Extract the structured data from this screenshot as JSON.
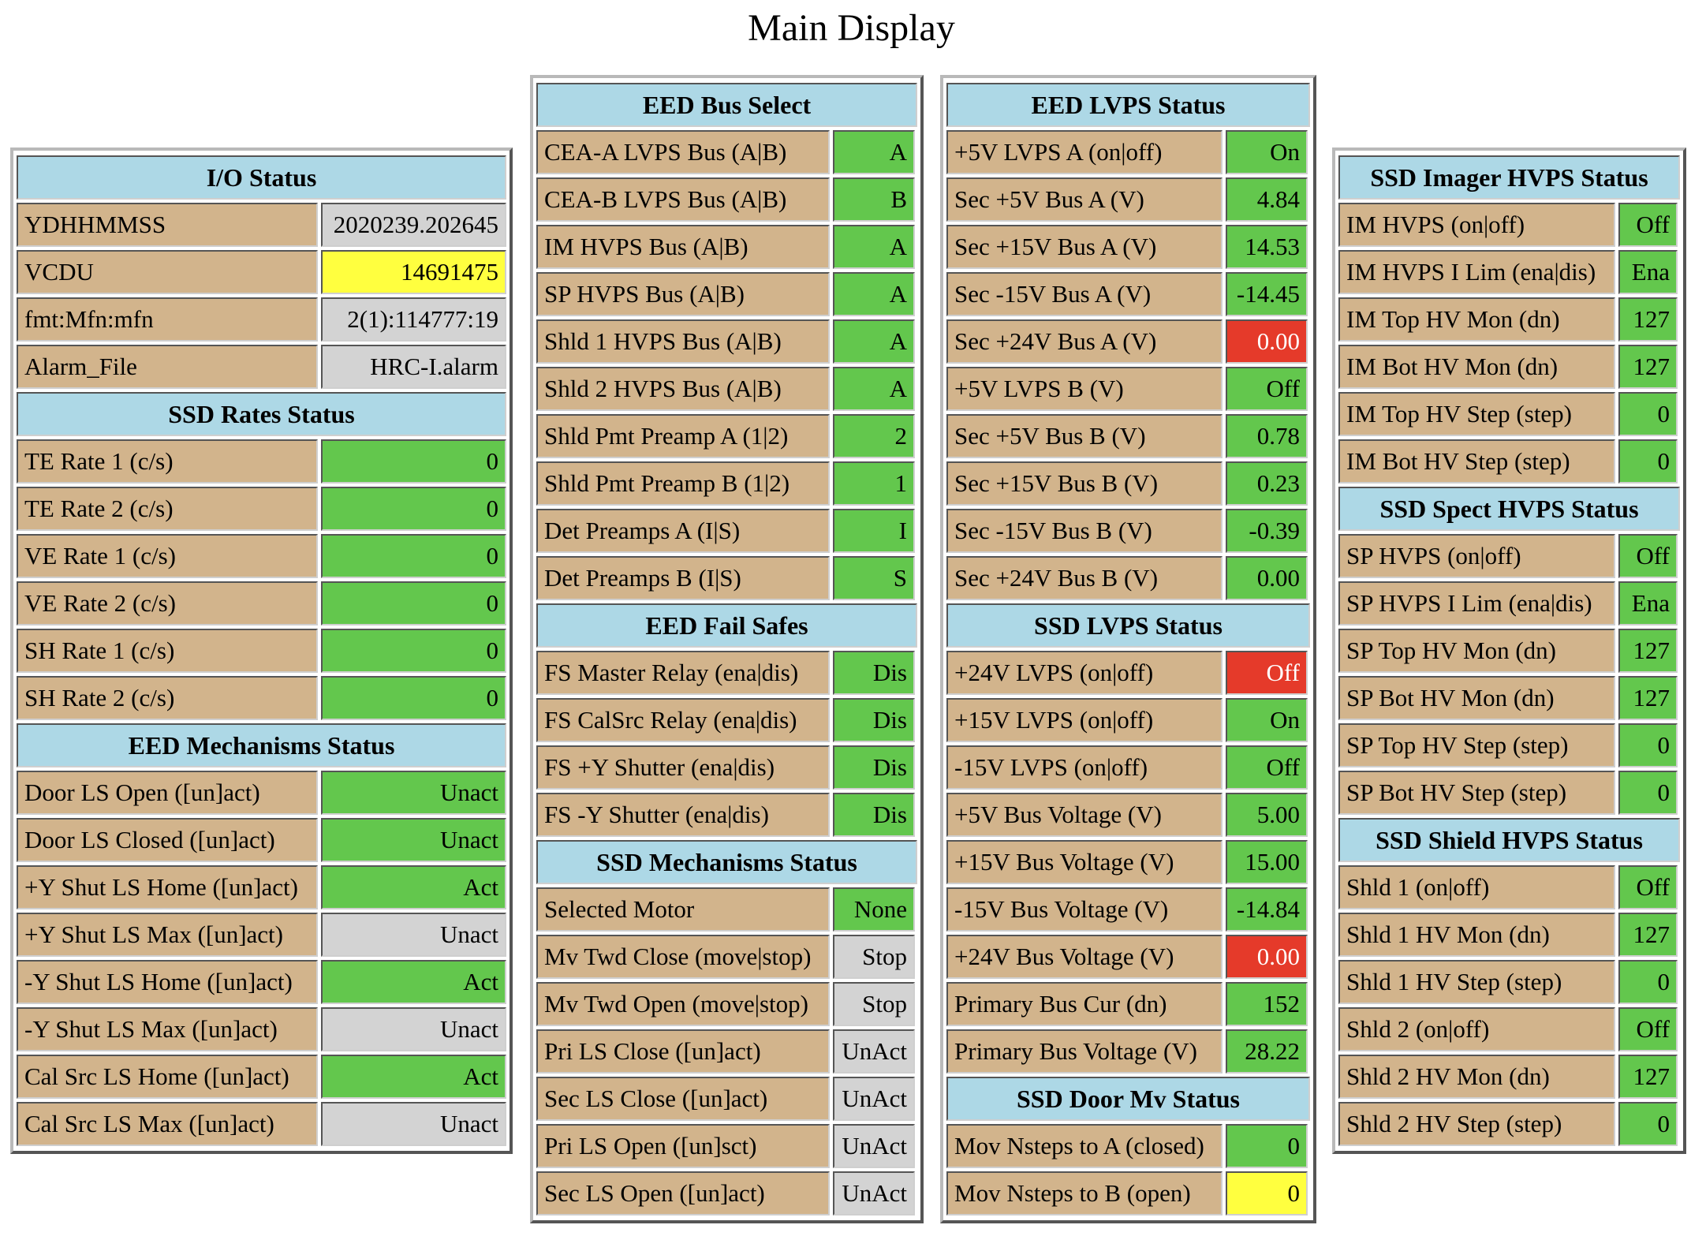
{
  "page": {
    "title": "Main Display"
  },
  "colors": {
    "ok": "#63c74d",
    "warn": "#ffff3f",
    "alarm": "#e53a2a",
    "neutral": "#d3d3d3",
    "label": "#d2b48c",
    "header": "#add8e6"
  },
  "panels": {
    "io": {
      "sections": [
        {
          "title": "I/O Status",
          "rows": [
            {
              "label": "YDHHMMSS",
              "value": "2020239.202645",
              "status": "neutral"
            },
            {
              "label": "VCDU",
              "value": "14691475",
              "status": "warn"
            },
            {
              "label": "fmt:Mfn:mfn",
              "value": "2(1):114777:19",
              "status": "neutral"
            },
            {
              "label": "Alarm_File",
              "value": "HRC-I.alarm",
              "status": "neutral"
            }
          ]
        },
        {
          "title": "SSD Rates Status",
          "rows": [
            {
              "label": "TE Rate 1 (c/s)",
              "value": "0",
              "status": "ok"
            },
            {
              "label": "TE Rate 2 (c/s)",
              "value": "0",
              "status": "ok"
            },
            {
              "label": "VE Rate 1 (c/s)",
              "value": "0",
              "status": "ok"
            },
            {
              "label": "VE Rate 2 (c/s)",
              "value": "0",
              "status": "ok"
            },
            {
              "label": "SH Rate 1 (c/s)",
              "value": "0",
              "status": "ok"
            },
            {
              "label": "SH Rate 2 (c/s)",
              "value": "0",
              "status": "ok"
            }
          ]
        },
        {
          "title": "EED Mechanisms Status",
          "rows": [
            {
              "label": "Door LS Open ([un]act)",
              "value": "Unact",
              "status": "ok"
            },
            {
              "label": "Door LS Closed ([un]act)",
              "value": "Unact",
              "status": "ok"
            },
            {
              "label": "+Y Shut LS Home ([un]act)",
              "value": "Act",
              "status": "ok"
            },
            {
              "label": "+Y Shut LS Max ([un]act)",
              "value": "Unact",
              "status": "neutral"
            },
            {
              "label": "-Y Shut LS Home ([un]act)",
              "value": "Act",
              "status": "ok"
            },
            {
              "label": "-Y Shut LS Max ([un]act)",
              "value": "Unact",
              "status": "neutral"
            },
            {
              "label": "Cal Src LS Home ([un]act)",
              "value": "Act",
              "status": "ok"
            },
            {
              "label": "Cal Src LS Max ([un]act)",
              "value": "Unact",
              "status": "neutral"
            }
          ]
        }
      ]
    },
    "bus": {
      "sections": [
        {
          "title": "EED Bus Select",
          "rows": [
            {
              "label": "CEA-A LVPS Bus (A|B)",
              "value": "A",
              "status": "ok"
            },
            {
              "label": "CEA-B LVPS Bus (A|B)",
              "value": "B",
              "status": "ok"
            },
            {
              "label": "IM HVPS Bus (A|B)",
              "value": "A",
              "status": "ok"
            },
            {
              "label": "SP HVPS Bus (A|B)",
              "value": "A",
              "status": "ok"
            },
            {
              "label": "Shld 1 HVPS Bus (A|B)",
              "value": "A",
              "status": "ok"
            },
            {
              "label": "Shld 2 HVPS Bus (A|B)",
              "value": "A",
              "status": "ok"
            },
            {
              "label": "Shld Pmt Preamp A (1|2)",
              "value": "2",
              "status": "ok"
            },
            {
              "label": "Shld Pmt Preamp B (1|2)",
              "value": "1",
              "status": "ok"
            },
            {
              "label": "Det Preamps A (I|S)",
              "value": "I",
              "status": "ok"
            },
            {
              "label": "Det Preamps B (I|S)",
              "value": "S",
              "status": "ok"
            }
          ]
        },
        {
          "title": "EED Fail Safes",
          "rows": [
            {
              "label": "FS Master Relay (ena|dis)",
              "value": "Dis",
              "status": "ok"
            },
            {
              "label": "FS CalSrc Relay (ena|dis)",
              "value": "Dis",
              "status": "ok"
            },
            {
              "label": "FS +Y Shutter (ena|dis)",
              "value": "Dis",
              "status": "ok"
            },
            {
              "label": "FS -Y Shutter (ena|dis)",
              "value": "Dis",
              "status": "ok"
            }
          ]
        },
        {
          "title": "SSD Mechanisms Status",
          "rows": [
            {
              "label": "Selected Motor",
              "value": "None",
              "status": "ok"
            },
            {
              "label": "Mv Twd Close (move|stop)",
              "value": "Stop",
              "status": "neutral"
            },
            {
              "label": "Mv Twd Open (move|stop)",
              "value": "Stop",
              "status": "neutral"
            },
            {
              "label": "Pri LS Close ([un]act)",
              "value": "UnAct",
              "status": "neutral"
            },
            {
              "label": "Sec LS Close ([un]act)",
              "value": "UnAct",
              "status": "neutral"
            },
            {
              "label": "Pri LS Open ([un]sct)",
              "value": "UnAct",
              "status": "neutral"
            },
            {
              "label": "Sec LS Open ([un]act)",
              "value": "UnAct",
              "status": "neutral"
            }
          ]
        }
      ]
    },
    "lvps": {
      "sections": [
        {
          "title": "EED LVPS Status",
          "rows": [
            {
              "label": "+5V LVPS A (on|off)",
              "value": "On",
              "status": "ok"
            },
            {
              "label": "Sec +5V Bus A (V)",
              "value": "4.84",
              "status": "ok"
            },
            {
              "label": "Sec +15V Bus A (V)",
              "value": "14.53",
              "status": "ok"
            },
            {
              "label": "Sec -15V Bus A (V)",
              "value": "-14.45",
              "status": "ok"
            },
            {
              "label": "Sec +24V Bus A (V)",
              "value": "0.00",
              "status": "alarm"
            },
            {
              "label": "+5V LVPS B (V)",
              "value": "Off",
              "status": "ok"
            },
            {
              "label": "Sec +5V Bus B (V)",
              "value": "0.78",
              "status": "ok"
            },
            {
              "label": "Sec +15V Bus B (V)",
              "value": "0.23",
              "status": "ok"
            },
            {
              "label": "Sec -15V Bus B (V)",
              "value": "-0.39",
              "status": "ok"
            },
            {
              "label": "Sec +24V Bus B (V)",
              "value": "0.00",
              "status": "ok"
            }
          ]
        },
        {
          "title": "SSD LVPS Status",
          "rows": [
            {
              "label": "+24V LVPS (on|off)",
              "value": "Off",
              "status": "alarm"
            },
            {
              "label": "+15V LVPS (on|off)",
              "value": "On",
              "status": "ok"
            },
            {
              "label": "-15V LVPS (on|off)",
              "value": "Off",
              "status": "ok"
            },
            {
              "label": "+5V Bus Voltage (V)",
              "value": "5.00",
              "status": "ok"
            },
            {
              "label": "+15V Bus Voltage (V)",
              "value": "15.00",
              "status": "ok"
            },
            {
              "label": "-15V Bus Voltage (V)",
              "value": "-14.84",
              "status": "ok"
            },
            {
              "label": "+24V Bus Voltage (V)",
              "value": "0.00",
              "status": "alarm"
            },
            {
              "label": "Primary Bus Cur (dn)",
              "value": "152",
              "status": "ok"
            },
            {
              "label": "Primary Bus Voltage (V)",
              "value": "28.22",
              "status": "ok"
            }
          ]
        },
        {
          "title": "SSD Door Mv Status",
          "rows": [
            {
              "label": "Mov Nsteps to A (closed)",
              "value": "0",
              "status": "ok"
            },
            {
              "label": "Mov Nsteps to B (open)",
              "value": "0",
              "status": "warn"
            }
          ]
        }
      ]
    },
    "hvps": {
      "sections": [
        {
          "title": "SSD Imager HVPS Status",
          "rows": [
            {
              "label": "IM HVPS (on|off)",
              "value": "Off",
              "status": "ok"
            },
            {
              "label": "IM HVPS I Lim (ena|dis)",
              "value": "Ena",
              "status": "ok"
            },
            {
              "label": "IM Top HV Mon (dn)",
              "value": "127",
              "status": "ok"
            },
            {
              "label": "IM Bot HV Mon (dn)",
              "value": "127",
              "status": "ok"
            },
            {
              "label": "IM Top HV Step (step)",
              "value": "0",
              "status": "ok"
            },
            {
              "label": "IM Bot HV Step (step)",
              "value": "0",
              "status": "ok"
            }
          ]
        },
        {
          "title": "SSD Spect HVPS Status",
          "rows": [
            {
              "label": "SP HVPS (on|off)",
              "value": "Off",
              "status": "ok"
            },
            {
              "label": "SP HVPS I Lim (ena|dis)",
              "value": "Ena",
              "status": "ok"
            },
            {
              "label": "SP Top HV Mon (dn)",
              "value": "127",
              "status": "ok"
            },
            {
              "label": "SP Bot HV Mon (dn)",
              "value": "127",
              "status": "ok"
            },
            {
              "label": "SP Top HV Step (step)",
              "value": "0",
              "status": "ok"
            },
            {
              "label": "SP Bot HV Step (step)",
              "value": "0",
              "status": "ok"
            }
          ]
        },
        {
          "title": "SSD Shield HVPS Status",
          "rows": [
            {
              "label": "Shld 1 (on|off)",
              "value": "Off",
              "status": "ok"
            },
            {
              "label": "Shld 1 HV Mon (dn)",
              "value": "127",
              "status": "ok"
            },
            {
              "label": "Shld 1 HV Step (step)",
              "value": "0",
              "status": "ok"
            },
            {
              "label": "Shld 2 (on|off)",
              "value": "Off",
              "status": "ok"
            },
            {
              "label": "Shld 2 HV Mon (dn)",
              "value": "127",
              "status": "ok"
            },
            {
              "label": "Shld 2 HV Step (step)",
              "value": "0",
              "status": "ok"
            }
          ]
        }
      ]
    }
  }
}
